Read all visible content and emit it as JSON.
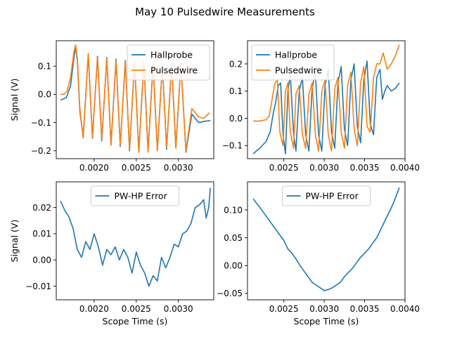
{
  "figure": {
    "title": "May 10 Pulsedwire Measurements",
    "colors": {
      "hallprobe": "#1f77b4",
      "pulsedwire": "#ff7f0e",
      "error": "#1f77b4"
    }
  },
  "chart_data": [
    {
      "type": "line",
      "panel": "top-left",
      "xlabel": "",
      "ylabel": "Signal (V)",
      "xlim": [
        0.00155,
        0.00342
      ],
      "ylim": [
        -0.228,
        0.19
      ],
      "xticks": [
        0.002,
        0.0025,
        0.003
      ],
      "xtick_labels": [
        "0.0020",
        "0.0025",
        "0.0030"
      ],
      "yticks": [
        -0.2,
        -0.1,
        0.0,
        0.1
      ],
      "ytick_labels": [
        "−0.2",
        "−0.1",
        "0.0",
        "0.1"
      ],
      "legend_position": "top-right",
      "series": [
        {
          "name": "Hallprobe",
          "color": "#1f77b4",
          "x": [
            0.0016,
            0.00167,
            0.00172,
            0.00176,
            0.00178,
            0.0018,
            0.00183,
            0.00187,
            0.00193,
            0.00198,
            0.00204,
            0.00209,
            0.00215,
            0.0022,
            0.00226,
            0.00231,
            0.00237,
            0.00242,
            0.00248,
            0.00253,
            0.00259,
            0.00264,
            0.0027,
            0.00275,
            0.00281,
            0.00286,
            0.00292,
            0.00297,
            0.00303,
            0.00309,
            0.00316,
            0.00324,
            0.00332,
            0.00338
          ],
          "y": [
            -0.02,
            -0.012,
            0.03,
            0.13,
            0.17,
            0.12,
            -0.06,
            -0.15,
            0.14,
            -0.155,
            0.135,
            -0.165,
            0.13,
            -0.18,
            0.125,
            -0.185,
            0.12,
            -0.2,
            0.115,
            -0.205,
            0.115,
            -0.2,
            0.11,
            -0.2,
            0.105,
            -0.195,
            0.11,
            -0.19,
            0.11,
            -0.205,
            -0.07,
            -0.1,
            -0.095,
            -0.093
          ]
        },
        {
          "name": "Pulsedwire",
          "color": "#ff7f0e",
          "x": [
            0.0016,
            0.00164,
            0.00168,
            0.00172,
            0.00176,
            0.00178,
            0.0018,
            0.00183,
            0.00187,
            0.00193,
            0.00198,
            0.00204,
            0.00209,
            0.00215,
            0.0022,
            0.00226,
            0.00231,
            0.00237,
            0.00242,
            0.00248,
            0.00253,
            0.00259,
            0.00264,
            0.0027,
            0.00275,
            0.00281,
            0.00286,
            0.00292,
            0.00297,
            0.00303,
            0.00309,
            0.00316,
            0.00324,
            0.0033,
            0.00337
          ],
          "y": [
            0.0,
            0.0,
            0.012,
            0.06,
            0.15,
            0.175,
            0.13,
            -0.05,
            -0.155,
            0.145,
            -0.15,
            0.13,
            -0.16,
            0.125,
            -0.18,
            0.12,
            -0.18,
            0.115,
            -0.195,
            0.11,
            -0.205,
            0.11,
            -0.205,
            0.105,
            -0.2,
            0.1,
            -0.19,
            0.105,
            -0.19,
            0.105,
            -0.2,
            -0.05,
            -0.08,
            -0.085,
            -0.065
          ]
        }
      ]
    },
    {
      "type": "line",
      "panel": "top-right",
      "xlabel": "",
      "ylabel": "",
      "xlim": [
        0.00205,
        0.004
      ],
      "ylim": [
        -0.148,
        0.285
      ],
      "xticks": [
        0.0025,
        0.003,
        0.0035,
        0.004
      ],
      "xtick_labels": [
        "0.0025",
        "0.0030",
        "0.0035",
        "0.0040"
      ],
      "yticks": [
        -0.1,
        0.0,
        0.1,
        0.2
      ],
      "ytick_labels": [
        "−0.1",
        "0.0",
        "0.1",
        "0.2"
      ],
      "legend_position": "top-left",
      "series": [
        {
          "name": "Hallprobe",
          "color": "#1f77b4",
          "x": [
            0.00212,
            0.0022,
            0.00228,
            0.00233,
            0.00237,
            0.0024,
            0.00243,
            0.00246,
            0.00249,
            0.00252,
            0.00255,
            0.00258,
            0.00262,
            0.00265,
            0.00269,
            0.00273,
            0.00277,
            0.00281,
            0.00285,
            0.00289,
            0.00293,
            0.00297,
            0.00301,
            0.00305,
            0.00309,
            0.00313,
            0.00317,
            0.00321,
            0.00325,
            0.00329,
            0.00333,
            0.00337,
            0.00341,
            0.00345,
            0.00349,
            0.00353,
            0.00357,
            0.00361,
            0.00365,
            0.00369,
            0.00372,
            0.00375,
            0.00378,
            0.00383,
            0.00388,
            0.00393
          ],
          "y": [
            -0.13,
            -0.11,
            -0.085,
            -0.05,
            0.02,
            0.06,
            0.12,
            0.13,
            -0.06,
            -0.13,
            0.1,
            0.16,
            -0.055,
            -0.12,
            0.1,
            0.15,
            -0.06,
            -0.12,
            0.11,
            0.17,
            -0.06,
            -0.12,
            0.12,
            0.18,
            -0.05,
            -0.11,
            0.13,
            0.19,
            -0.04,
            -0.1,
            0.14,
            0.2,
            -0.03,
            -0.09,
            0.14,
            0.21,
            -0.02,
            -0.06,
            0.15,
            0.18,
            0.07,
            0.1,
            0.12,
            0.1,
            0.11,
            0.13
          ]
        },
        {
          "name": "Pulsedwire",
          "color": "#ff7f0e",
          "x": [
            0.00212,
            0.0022,
            0.00228,
            0.00232,
            0.00236,
            0.00239,
            0.00242,
            0.00245,
            0.00249,
            0.00252,
            0.00255,
            0.00258,
            0.00262,
            0.00265,
            0.00269,
            0.00273,
            0.00277,
            0.00281,
            0.00285,
            0.00289,
            0.00293,
            0.00297,
            0.00301,
            0.00305,
            0.00309,
            0.00313,
            0.00317,
            0.00321,
            0.00325,
            0.00329,
            0.00333,
            0.00337,
            0.00341,
            0.00345,
            0.00349,
            0.00353,
            0.00357,
            0.00361,
            0.00365,
            0.00369,
            0.00373,
            0.00378,
            0.00383,
            0.00388,
            0.00393
          ],
          "y": [
            -0.01,
            -0.01,
            -0.005,
            0.01,
            0.08,
            0.13,
            0.14,
            -0.05,
            -0.1,
            0.1,
            0.13,
            -0.05,
            -0.11,
            0.09,
            0.12,
            -0.06,
            -0.11,
            0.09,
            0.13,
            -0.06,
            -0.12,
            0.1,
            0.14,
            -0.06,
            -0.12,
            0.11,
            0.15,
            -0.05,
            -0.11,
            0.12,
            0.17,
            -0.04,
            -0.1,
            0.13,
            0.19,
            -0.03,
            -0.05,
            0.15,
            0.2,
            0.2,
            0.24,
            0.18,
            0.2,
            0.23,
            0.27
          ]
        }
      ]
    },
    {
      "type": "line",
      "panel": "bottom-left",
      "xlabel": "Scope Time (s)",
      "ylabel": "Signal (V)",
      "xlim": [
        0.00155,
        0.00342
      ],
      "ylim": [
        -0.0152,
        0.0298
      ],
      "xticks": [
        0.002,
        0.0025,
        0.003
      ],
      "xtick_labels": [
        "0.0020",
        "0.0025",
        "0.0030"
      ],
      "yticks": [
        -0.01,
        0.0,
        0.01,
        0.02
      ],
      "ytick_labels": [
        "−0.01",
        "0.00",
        "0.01",
        "0.02"
      ],
      "legend_position": "top-center",
      "series": [
        {
          "name": "PW-HP Error",
          "color": "#1f77b4",
          "x": [
            0.0016,
            0.00165,
            0.0017,
            0.00175,
            0.0018,
            0.00185,
            0.0019,
            0.00195,
            0.002,
            0.00205,
            0.0021,
            0.00215,
            0.0022,
            0.00225,
            0.0023,
            0.00235,
            0.0024,
            0.00245,
            0.0025,
            0.00255,
            0.0026,
            0.00265,
            0.0027,
            0.00275,
            0.0028,
            0.00285,
            0.0029,
            0.00295,
            0.003,
            0.00305,
            0.0031,
            0.00315,
            0.0032,
            0.00325,
            0.0033,
            0.00333,
            0.00336,
            0.00338
          ],
          "y": [
            0.0225,
            0.019,
            0.0165,
            0.012,
            0.004,
            0.001,
            0.007,
            0.004,
            0.01,
            0.005,
            -0.002,
            0.004,
            0.002,
            0.005,
            0.0,
            0.004,
            0.001,
            -0.005,
            0.003,
            -0.002,
            -0.005,
            -0.01,
            -0.006,
            -0.008,
            0.001,
            -0.003,
            0.001,
            0.006,
            0.005,
            0.01,
            0.011,
            0.014,
            0.02,
            0.021,
            0.023,
            0.016,
            0.02,
            0.0275
          ]
        }
      ]
    },
    {
      "type": "line",
      "panel": "bottom-right",
      "xlabel": "Scope Time (s)",
      "ylabel": "",
      "xlim": [
        0.00205,
        0.004
      ],
      "ylim": [
        -0.0615,
        0.1505
      ],
      "xticks": [
        0.0025,
        0.003,
        0.0035,
        0.004
      ],
      "xtick_labels": [
        "0.0025",
        "0.0030",
        "0.0035",
        "0.0040"
      ],
      "yticks": [
        -0.05,
        0.0,
        0.05,
        0.1
      ],
      "ytick_labels": [
        "−0.05",
        "0.00",
        "0.05",
        "0.10"
      ],
      "legend_position": "top-center",
      "series": [
        {
          "name": "PW-HP Error",
          "color": "#1f77b4",
          "x": [
            0.00212,
            0.0022,
            0.0023,
            0.0024,
            0.0025,
            0.00255,
            0.0026,
            0.00265,
            0.0027,
            0.00275,
            0.0028,
            0.00285,
            0.0029,
            0.00295,
            0.003,
            0.00305,
            0.0031,
            0.00315,
            0.0032,
            0.00325,
            0.0033,
            0.00335,
            0.0034,
            0.00345,
            0.0035,
            0.00355,
            0.0036,
            0.00365,
            0.0037,
            0.00375,
            0.0038,
            0.00385,
            0.00393
          ],
          "y": [
            0.12,
            0.105,
            0.085,
            0.065,
            0.045,
            0.03,
            0.022,
            0.012,
            0.0,
            -0.01,
            -0.02,
            -0.03,
            -0.035,
            -0.04,
            -0.045,
            -0.043,
            -0.04,
            -0.035,
            -0.03,
            -0.02,
            -0.012,
            -0.005,
            0.005,
            0.015,
            0.022,
            0.03,
            0.04,
            0.05,
            0.065,
            0.08,
            0.095,
            0.11,
            0.14
          ]
        }
      ]
    }
  ]
}
